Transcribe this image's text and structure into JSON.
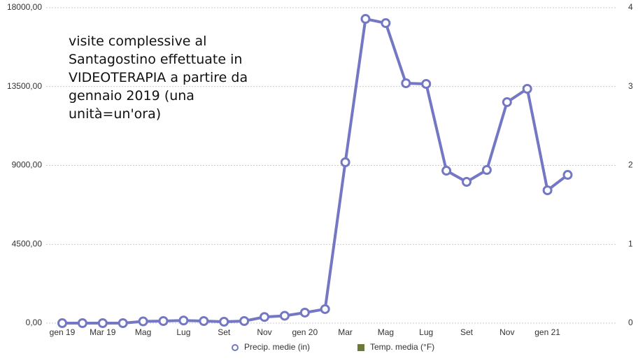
{
  "chart_data": {
    "type": "line",
    "annotation": [
      "visite complessive al",
      "Santagostino effettuate in",
      "VIDEOTERAPIA a partire da",
      "gennaio 2019 (una",
      "unità=un'ora)"
    ],
    "categories": [
      "gen 19",
      null,
      "Mar 19",
      null,
      "Mag",
      null,
      "Lug",
      null,
      "Set",
      null,
      "Nov",
      null,
      "gen 20",
      null,
      "Mar",
      null,
      "Mag",
      null,
      "Lug",
      null,
      "Set",
      null,
      "Nov",
      null,
      "gen 21",
      null
    ],
    "series": [
      {
        "name": "Precip. medie (in)",
        "color": "#7377c4",
        "values": [
          0,
          0,
          0,
          0,
          100,
          120,
          150,
          120,
          80,
          120,
          350,
          420,
          600,
          800,
          9180,
          17360,
          17120,
          13690,
          13650,
          8700,
          8060,
          8740,
          12610,
          13370,
          7580,
          8460
        ]
      },
      {
        "name": "Temp. media (°F)",
        "color": "#6b7a3a",
        "axis": "y2",
        "values": [
          null,
          null,
          null,
          null,
          null,
          null,
          null,
          null,
          null,
          null,
          null,
          null,
          null,
          null,
          null,
          null,
          null,
          null,
          null,
          null,
          null,
          null,
          null,
          null,
          null,
          null
        ]
      }
    ],
    "ylim": [
      0,
      18000
    ],
    "yticks": [
      {
        "value": 0,
        "label": "0,00"
      },
      {
        "value": 4500,
        "label": "4500,00"
      },
      {
        "value": 9000,
        "label": "9000,00"
      },
      {
        "value": 13500,
        "label": "13500,00"
      },
      {
        "value": 18000,
        "label": "18000,00"
      }
    ],
    "y2lim": [
      0,
      4
    ],
    "y2ticks": [
      0,
      1,
      2,
      3,
      4
    ],
    "grid": true
  }
}
